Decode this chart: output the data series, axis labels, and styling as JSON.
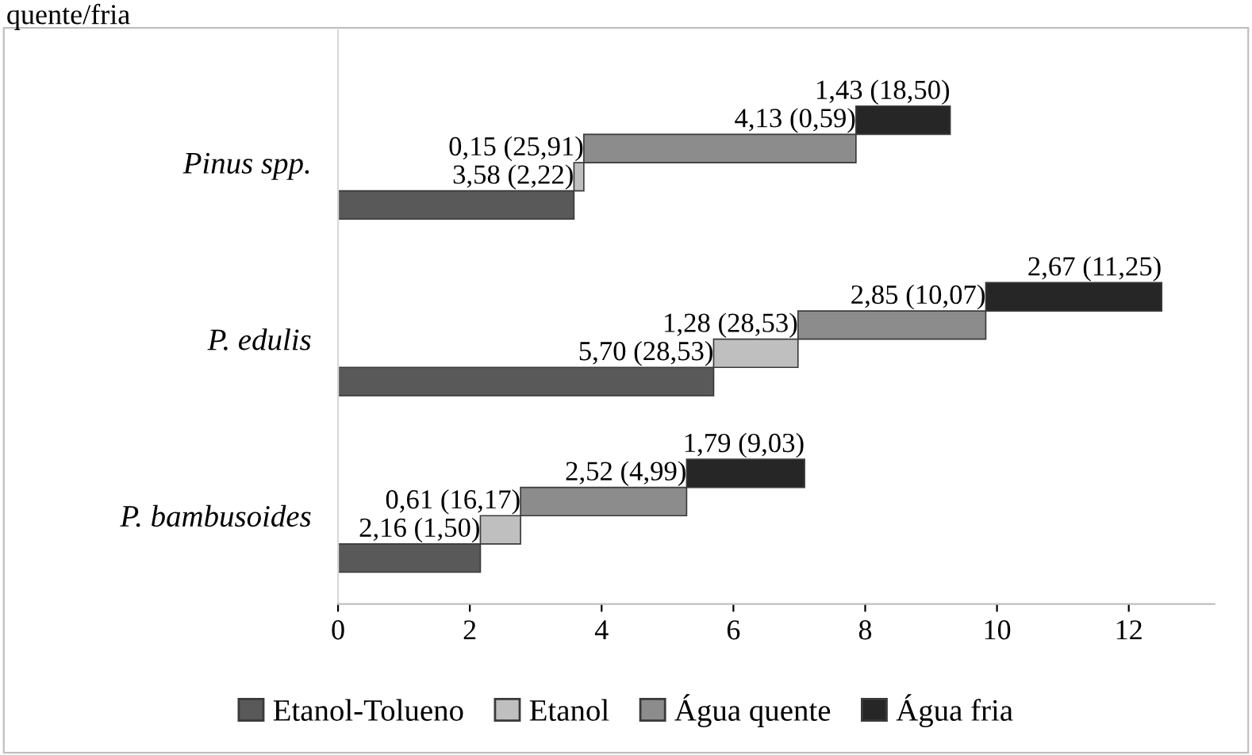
{
  "chart_data": {
    "type": "bar",
    "orientation": "horizontal",
    "categories": [
      "Pinus spp.",
      "P. edulis",
      "P. bambusoides"
    ],
    "series": [
      {
        "name": "Etanol-Tolueno",
        "color": "#595959",
        "values": [
          3.58,
          5.7,
          2.16
        ],
        "base": [
          0,
          0,
          0
        ],
        "value_labels": [
          "3,58 (2,22)",
          "5,70 (28,53)",
          "2,16 (1,50)"
        ]
      },
      {
        "name": "Etanol",
        "color": "#bfbfbf",
        "values": [
          0.15,
          1.28,
          0.61
        ],
        "base": [
          3.58,
          5.7,
          2.16
        ],
        "value_labels": [
          "0,15 (25,91)",
          "1,28 (28,53)",
          "0,61 (16,17)"
        ]
      },
      {
        "name": "Água quente",
        "color": "#8c8c8c",
        "values": [
          4.13,
          2.85,
          2.52
        ],
        "base": [
          3.73,
          6.98,
          2.77
        ],
        "value_labels": [
          "4,13 (0,59)",
          "2,85 (10,07)",
          "2,52 (4,99)"
        ]
      },
      {
        "name": "Água fria",
        "color": "#262626",
        "values": [
          1.43,
          2.67,
          1.79
        ],
        "base": [
          7.86,
          9.83,
          5.29
        ],
        "value_labels": [
          "1,43 (18,50)",
          "2,67 (11,25)",
          "1,79 (9,03)"
        ]
      }
    ],
    "xlim": [
      0,
      13.3
    ],
    "xticks": [
      0,
      2,
      4,
      6,
      8,
      10,
      12
    ],
    "grid": false,
    "legend": "bottom",
    "annotations": [
      "quente/fria"
    ]
  }
}
